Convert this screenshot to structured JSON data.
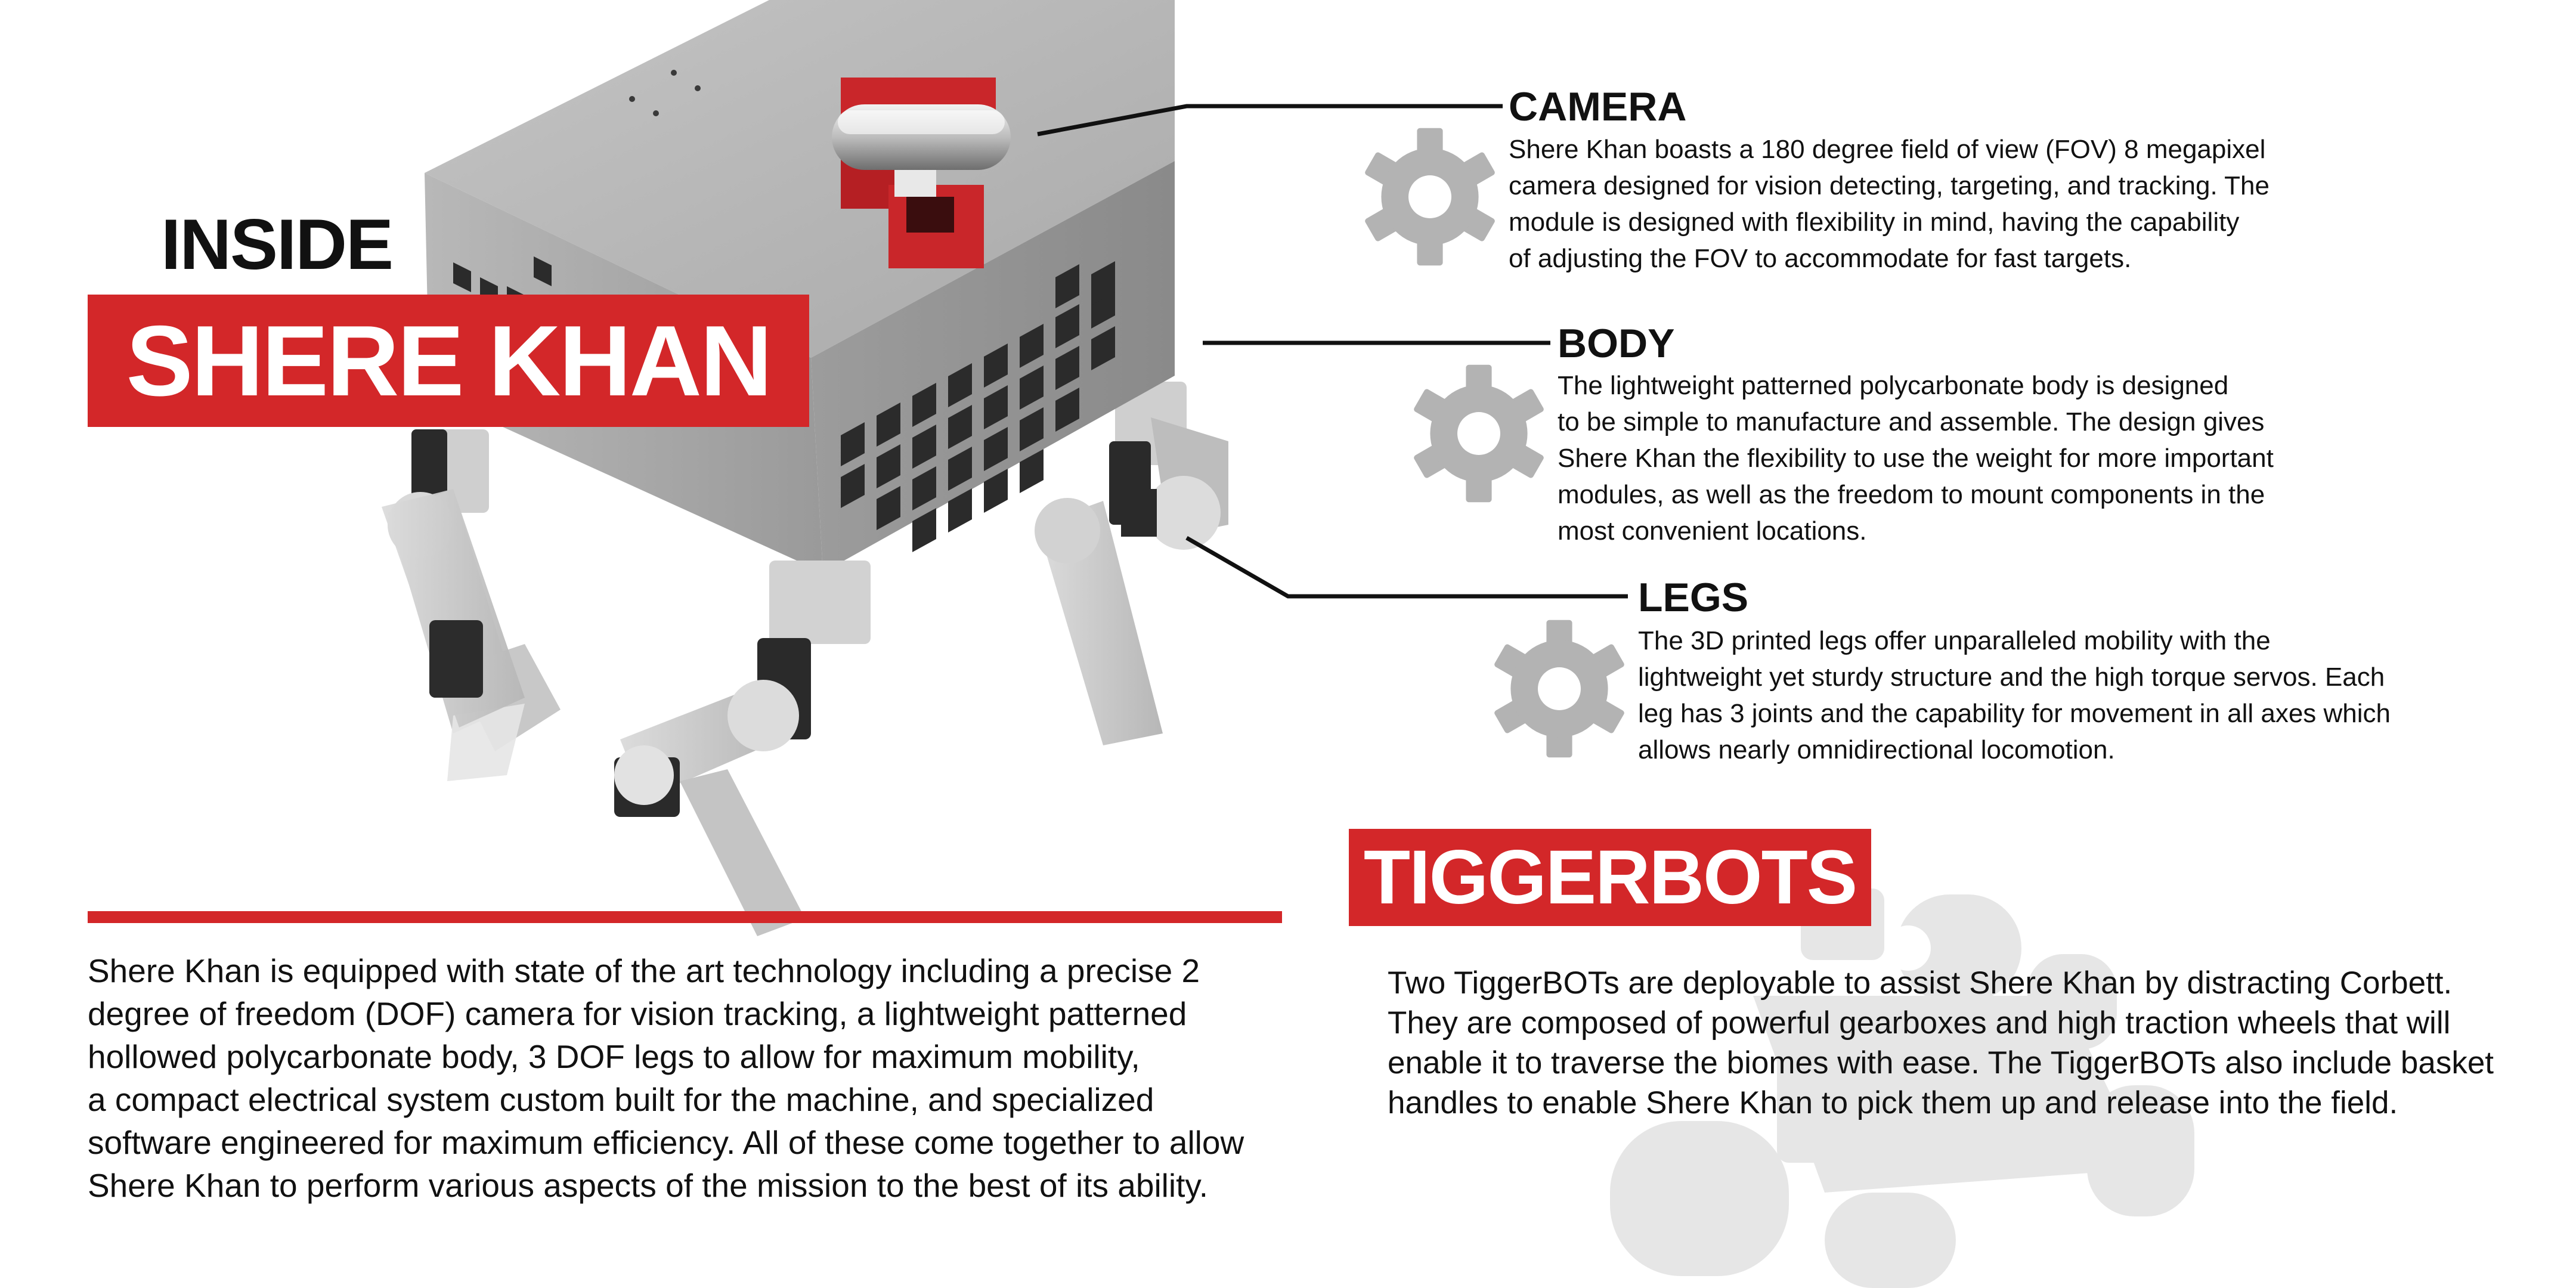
{
  "title": {
    "inside": "INSIDE",
    "name": "SHERE KHAN"
  },
  "features": [
    {
      "heading": "CAMERA",
      "icon": "gear-icon",
      "lines": [
        "Shere Khan boasts a 180 degree field of view (FOV) 8 megapixel",
        "camera designed for vision detecting, targeting, and tracking. The",
        "module is designed with flexibility in mind, having the capability",
        "of adjusting the FOV to accommodate for fast targets."
      ]
    },
    {
      "heading": "BODY",
      "icon": "gear-icon",
      "lines": [
        "The lightweight patterned polycarbonate body is designed",
        "to be simple to manufacture and assemble. The design gives",
        "Shere Khan the flexibility to use the weight for more important",
        "modules, as well as the freedom to mount components in the",
        "most convenient locations."
      ]
    },
    {
      "heading": "LEGS",
      "icon": "gear-icon",
      "lines": [
        "The 3D printed legs offer unparalleled mobility with the",
        "lightweight yet sturdy structure and the high torque servos. Each",
        "leg has 3 joints and the capability for movement in all axes which",
        "allows nearly omnidirectional locomotion."
      ]
    }
  ],
  "intro": {
    "lines": [
      "Shere Khan is equipped with state of the art technology including a precise 2",
      "degree of freedom (DOF) camera for vision tracking, a lightweight patterned",
      "hollowed polycarbonate body, 3 DOF legs to allow for maximum mobility,",
      "a compact electrical system custom built for the machine, and specialized",
      "software engineered for maximum efficiency. All of these come together to allow",
      "Shere Khan to perform various aspects of the mission to the best of its ability."
    ]
  },
  "tiggerbots": {
    "heading": "TIGGERBOTS",
    "lines": [
      "Two TiggerBOTs are deployable to assist Shere Khan by distracting Corbett.",
      "They are composed of powerful gearboxes and high traction wheels that will",
      "enable it to traverse the biomes with ease. The TiggerBOTs also include basket",
      "handles to enable Shere Khan to pick them up and release into the field."
    ]
  },
  "colors": {
    "accent": "#d32729",
    "text": "#111111",
    "gear": "#b3b3b3",
    "body_metal": "#a8a8a8"
  }
}
